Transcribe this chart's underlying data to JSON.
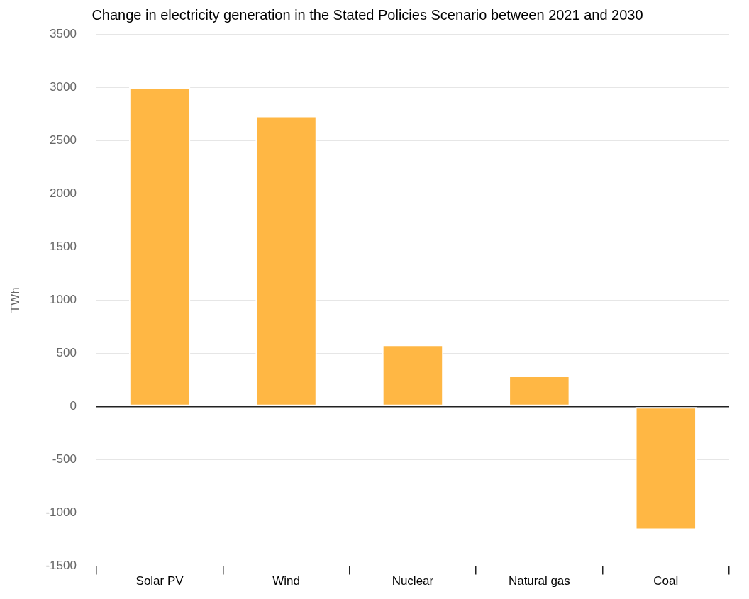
{
  "chart_data": {
    "type": "bar",
    "title": "Change in electricity generation in the Stated Policies Scenario between 2021 and 2030",
    "ylabel": "TWh",
    "categories": [
      "Solar PV",
      "Wind",
      "Nuclear",
      "Natural gas",
      "Coal"
    ],
    "values": [
      3000,
      2730,
      580,
      290,
      -1160
    ],
    "color": "#ffb744",
    "ylim": [
      -1500,
      3500
    ],
    "yticks": [
      -1500,
      -1000,
      -500,
      0,
      500,
      1000,
      1500,
      2000,
      2500,
      3000,
      3500
    ],
    "grid": "y"
  }
}
